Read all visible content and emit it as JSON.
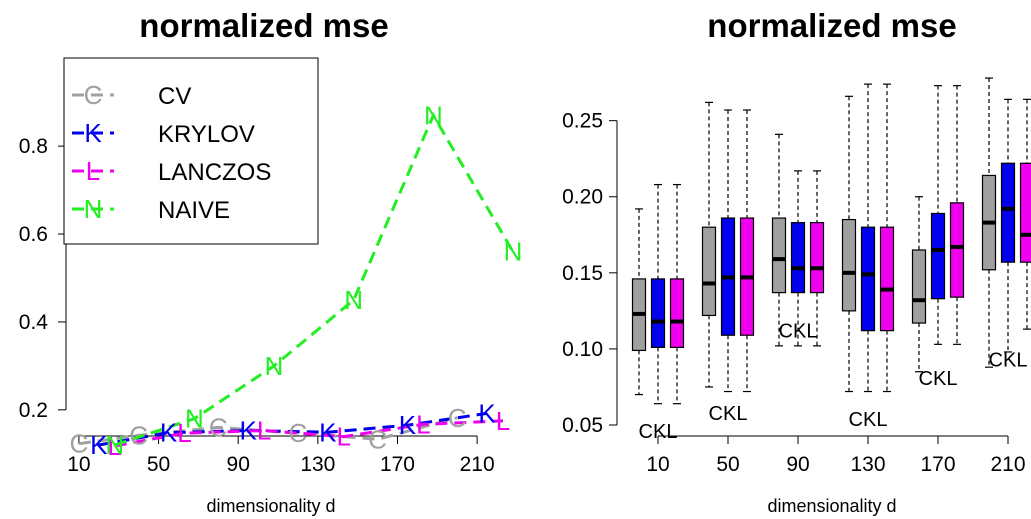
{
  "chart_data": [
    {
      "type": "line",
      "title": "normalized mse",
      "xlabel": "dimensionality d",
      "ylabel": "",
      "x_ticks": [
        "10",
        "50",
        "90",
        "130",
        "170",
        "210"
      ],
      "y_ticks": [
        "0.2",
        "0.4",
        "0.6",
        "0.8"
      ],
      "xlim": [
        0,
        225
      ],
      "ylim": [
        0.12,
        0.905
      ],
      "legend_position": "top-left",
      "series": [
        {
          "name": "CV",
          "marker": "C",
          "color": "#a0a0a0",
          "x": [
            10,
            40,
            80,
            120,
            160,
            200
          ],
          "y": [
            0.123,
            0.142,
            0.16,
            0.147,
            0.133,
            0.182
          ]
        },
        {
          "name": "KRYLOV",
          "marker": "K",
          "color": "#0000ee",
          "x": [
            20,
            55,
            95,
            135,
            175,
            215
          ],
          "y": [
            0.12,
            0.148,
            0.153,
            0.149,
            0.165,
            0.192
          ]
        },
        {
          "name": "LANCZOS",
          "marker": "L",
          "color": "#ee00ee",
          "x": [
            28,
            63,
            103,
            143,
            183,
            223
          ],
          "y": [
            0.118,
            0.147,
            0.153,
            0.139,
            0.167,
            0.175
          ]
        },
        {
          "name": "NAIVE",
          "marker": "N",
          "color": "#22ee22",
          "x": [
            28,
            68,
            108,
            148,
            188,
            228
          ],
          "y": [
            0.12,
            0.18,
            0.3,
            0.45,
            0.87,
            0.56
          ]
        }
      ]
    },
    {
      "type": "box",
      "title": "normalized mse",
      "xlabel": "dimensionality d",
      "ylabel": "",
      "categories": [
        "10",
        "50",
        "90",
        "130",
        "170",
        "210"
      ],
      "y_ticks": [
        "0.05",
        "0.10",
        "0.15",
        "0.20",
        "0.25"
      ],
      "ylim": [
        0.05,
        0.28
      ],
      "series": [
        {
          "name": "C",
          "color": "#a0a0a0",
          "boxes": [
            {
              "min": 0.07,
              "q1": 0.099,
              "median": 0.123,
              "q3": 0.146,
              "max": 0.192
            },
            {
              "min": 0.075,
              "q1": 0.122,
              "median": 0.143,
              "q3": 0.18,
              "max": 0.262
            },
            {
              "min": 0.102,
              "q1": 0.137,
              "median": 0.159,
              "q3": 0.186,
              "max": 0.241
            },
            {
              "min": 0.072,
              "q1": 0.125,
              "median": 0.15,
              "q3": 0.185,
              "max": 0.266
            },
            {
              "min": 0.085,
              "q1": 0.117,
              "median": 0.132,
              "q3": 0.165,
              "max": 0.2
            },
            {
              "min": 0.088,
              "q1": 0.152,
              "median": 0.183,
              "q3": 0.214,
              "max": 0.278
            }
          ]
        },
        {
          "name": "K",
          "color": "#0000ee",
          "boxes": [
            {
              "min": 0.064,
              "q1": 0.101,
              "median": 0.118,
              "q3": 0.146,
              "max": 0.208
            },
            {
              "min": 0.072,
              "q1": 0.109,
              "median": 0.147,
              "q3": 0.186,
              "max": 0.257
            },
            {
              "min": 0.102,
              "q1": 0.137,
              "median": 0.153,
              "q3": 0.183,
              "max": 0.217
            },
            {
              "min": 0.072,
              "q1": 0.112,
              "median": 0.149,
              "q3": 0.18,
              "max": 0.274
            },
            {
              "min": 0.103,
              "q1": 0.133,
              "median": 0.165,
              "q3": 0.189,
              "max": 0.273
            },
            {
              "min": 0.098,
              "q1": 0.157,
              "median": 0.192,
              "q3": 0.222,
              "max": 0.264
            }
          ]
        },
        {
          "name": "L",
          "color": "#ee00ee",
          "boxes": [
            {
              "min": 0.064,
              "q1": 0.101,
              "median": 0.118,
              "q3": 0.146,
              "max": 0.208
            },
            {
              "min": 0.072,
              "q1": 0.109,
              "median": 0.147,
              "q3": 0.186,
              "max": 0.257
            },
            {
              "min": 0.102,
              "q1": 0.137,
              "median": 0.153,
              "q3": 0.183,
              "max": 0.217
            },
            {
              "min": 0.072,
              "q1": 0.112,
              "median": 0.139,
              "q3": 0.18,
              "max": 0.274
            },
            {
              "min": 0.103,
              "q1": 0.134,
              "median": 0.167,
              "q3": 0.196,
              "max": 0.273
            },
            {
              "min": 0.113,
              "q1": 0.157,
              "median": 0.175,
              "q3": 0.222,
              "max": 0.264
            }
          ]
        }
      ],
      "group_labels": [
        "CKL",
        "CKL",
        "CKL",
        "CKL",
        "CKL",
        "CKL"
      ],
      "group_label_y": [
        0.046,
        0.058,
        0.112,
        0.054,
        0.081,
        0.093
      ]
    }
  ]
}
